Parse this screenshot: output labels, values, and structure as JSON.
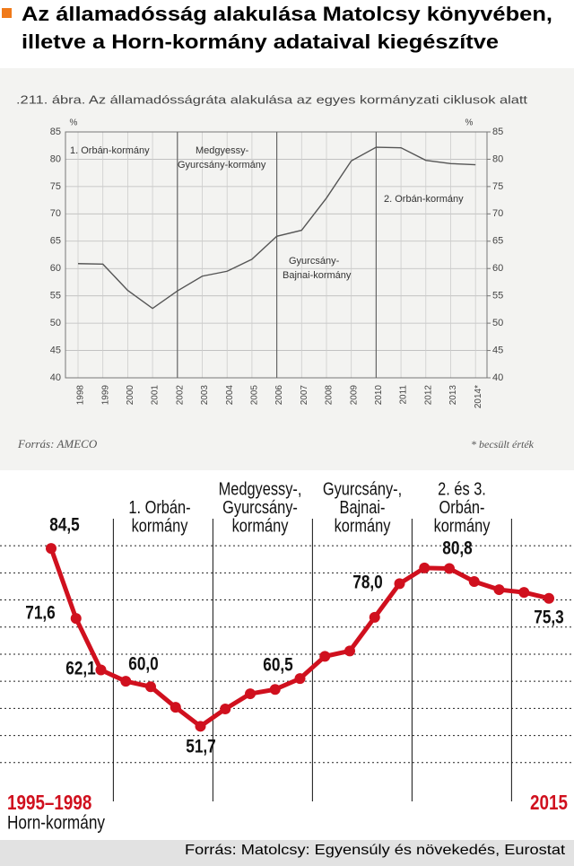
{
  "header": {
    "title_lines": [
      "Az államadósság alakulása Matolcsy könyvében,",
      "illetve a Horn-kormány adataival kiegészítve"
    ]
  },
  "chart_data": [
    {
      "type": "line",
      "caption": ".211. ábra. Az államadósságráta alakulása az egyes kormányzati ciklusok alatt",
      "ylabel": "%",
      "y2label": "%",
      "categories": [
        "1998",
        "1999",
        "2000",
        "2001",
        "2002",
        "2003",
        "2004",
        "2005",
        "2006",
        "2007",
        "2008",
        "2009",
        "2010",
        "2011",
        "2012",
        "2013",
        "2014*"
      ],
      "values": [
        60.9,
        60.8,
        56,
        52.7,
        55.9,
        58.6,
        59.5,
        61.7,
        65.9,
        67,
        72.9,
        79.7,
        82.2,
        82.1,
        79.8,
        79.2,
        79
      ],
      "color": "#555555",
      "ylim": [
        40,
        85
      ],
      "yticks": [
        40,
        45,
        50,
        55,
        60,
        65,
        70,
        75,
        80,
        85
      ],
      "y2lim": [
        40,
        85
      ],
      "y2ticks": [
        40,
        45,
        50,
        55,
        60,
        65,
        70,
        75,
        80,
        85
      ],
      "grid": true,
      "period_lines": [
        "2002",
        "2006",
        "2010"
      ],
      "annotations": [
        {
          "lines": [
            "1. Orbán-kormány"
          ]
        },
        {
          "lines": [
            "Medgyessy-",
            "Gyurcsány-kormány"
          ]
        },
        {
          "lines": [
            "Gyurcsány-",
            "Bajnai-kormány"
          ]
        },
        {
          "lines": [
            "2. Orbán-kormány"
          ]
        }
      ],
      "source": "Forrás: AMECO",
      "note": "* becsült érték"
    },
    {
      "type": "line",
      "x": [
        1995,
        1996,
        1997,
        1998,
        1999,
        2000,
        2001,
        2002,
        2003,
        2004,
        2005,
        2006,
        2007,
        2008,
        2009,
        2010,
        2011,
        2012,
        2013,
        2014,
        2015
      ],
      "values": [
        84.5,
        71.6,
        62.1,
        60.0,
        59.0,
        55.2,
        51.7,
        54.9,
        57.7,
        58.5,
        60.5,
        64.6,
        65.6,
        71.8,
        78.0,
        80.9,
        80.8,
        78.4,
        76.9,
        76.4,
        75.3
      ],
      "value_labels": [
        "84,5",
        "71,6",
        "62,1",
        "60,0",
        null,
        null,
        "51,7",
        null,
        null,
        null,
        "60,5",
        null,
        null,
        null,
        "78,0",
        null,
        "80,8",
        null,
        null,
        null,
        "75,3"
      ],
      "color": "#d0101e",
      "xlim": [
        1995,
        2015
      ],
      "ylim": [
        40,
        88
      ],
      "yticks": [
        45,
        50,
        55,
        60,
        65,
        70,
        75,
        80,
        85
      ],
      "grid": true,
      "period_lines": [
        1997.5,
        2001.5,
        2005.5,
        2009.5,
        2013.5
      ],
      "annotations": [
        {
          "lines": [
            "1. Orbán-",
            "kormány"
          ]
        },
        {
          "lines": [
            "Medgyessy-,",
            "Gyurcsány-",
            "kormány"
          ]
        },
        {
          "lines": [
            "Gyurcsány-,",
            "Bajnai-",
            "kormány"
          ]
        },
        {
          "lines": [
            "2. és 3.",
            "Orbán-",
            "kormány"
          ]
        }
      ],
      "start_label": "1995–1998",
      "start_sublabel": "Horn-kormány"
    }
  ],
  "footer": {
    "source": "Forrás: Matolcsy: Egyensúly és növekedés, Eurostat"
  }
}
